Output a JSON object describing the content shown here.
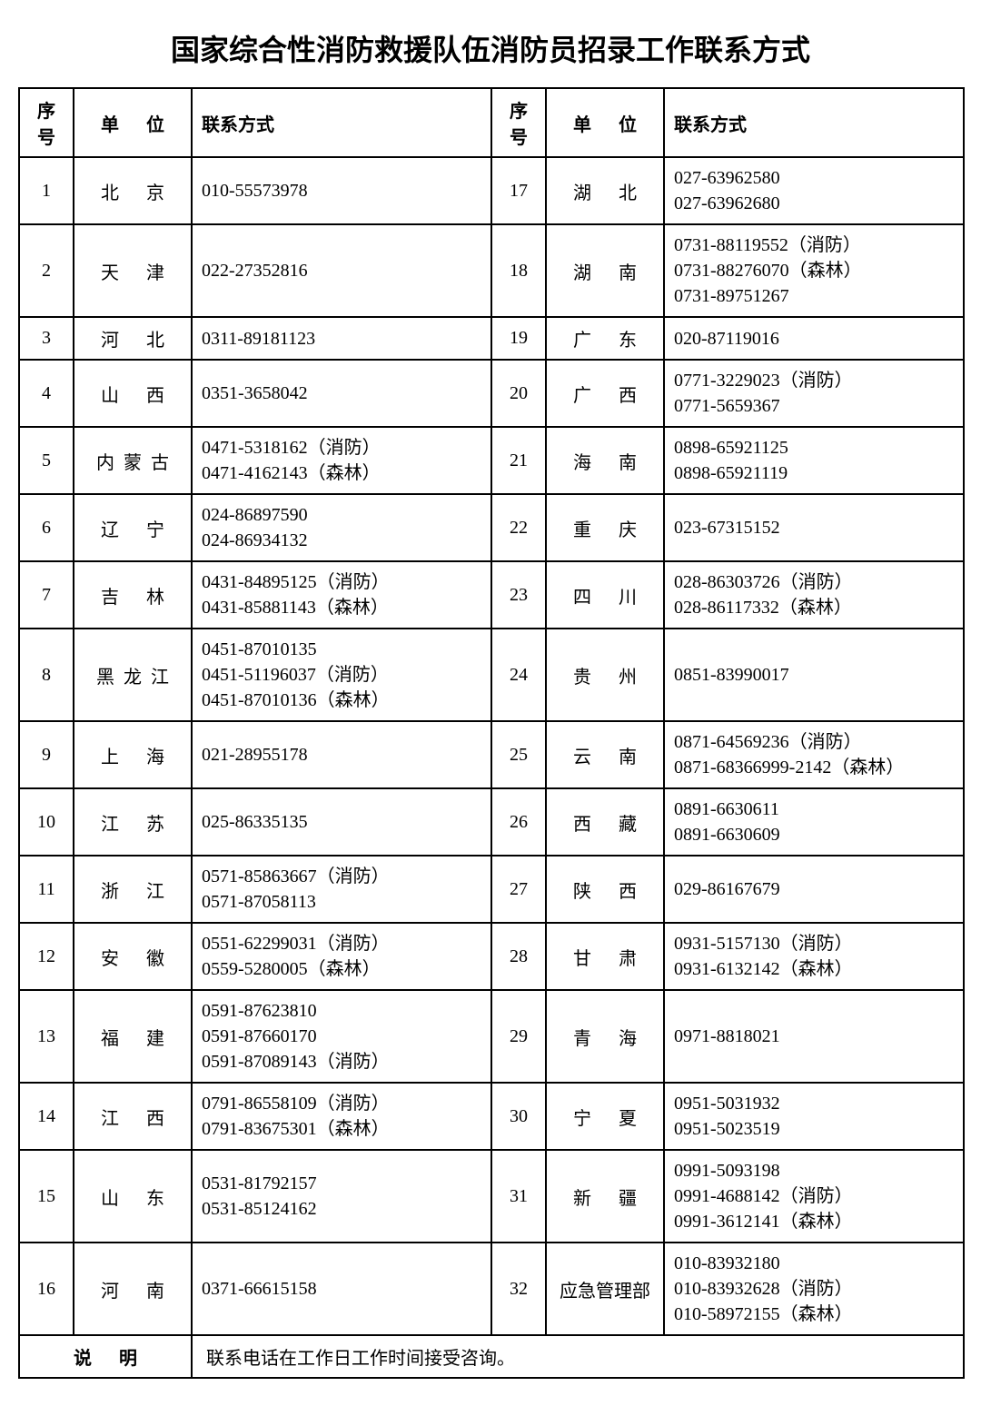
{
  "title": "国家综合性消防救援队伍消防员招录工作联系方式",
  "headers": {
    "num": "序号",
    "unit": "单位",
    "contact": "联系方式"
  },
  "footer": {
    "label": "说明",
    "text": "联系电话在工作日工作时间接受咨询。"
  },
  "rows": [
    {
      "n1": "1",
      "u1": "北京",
      "u1len": 2,
      "c1": "010-55573978",
      "n2": "17",
      "u2": "湖北",
      "u2len": 2,
      "c2": "027-63962580\n027-63962680"
    },
    {
      "n1": "2",
      "u1": "天津",
      "u1len": 2,
      "c1": "022-27352816",
      "n2": "18",
      "u2": "湖南",
      "u2len": 2,
      "c2": "0731-88119552（消防）\n0731-88276070（森林）\n0731-89751267"
    },
    {
      "n1": "3",
      "u1": "河北",
      "u1len": 2,
      "c1": "0311-89181123",
      "n2": "19",
      "u2": "广东",
      "u2len": 2,
      "c2": "020-87119016"
    },
    {
      "n1": "4",
      "u1": "山西",
      "u1len": 2,
      "c1": "0351-3658042",
      "n2": "20",
      "u2": "广西",
      "u2len": 2,
      "c2": "0771-3229023（消防）\n0771-5659367"
    },
    {
      "n1": "5",
      "u1": "内蒙古",
      "u1len": 3,
      "c1": "0471-5318162（消防）\n0471-4162143（森林）",
      "n2": "21",
      "u2": "海南",
      "u2len": 2,
      "c2": "0898-65921125\n0898-65921119"
    },
    {
      "n1": "6",
      "u1": "辽宁",
      "u1len": 2,
      "c1": "024-86897590\n024-86934132",
      "n2": "22",
      "u2": "重庆",
      "u2len": 2,
      "c2": "023-67315152"
    },
    {
      "n1": "7",
      "u1": "吉林",
      "u1len": 2,
      "c1": "0431-84895125（消防）\n0431-85881143（森林）",
      "n2": "23",
      "u2": "四川",
      "u2len": 2,
      "c2": "028-86303726（消防）\n028-86117332（森林）"
    },
    {
      "n1": "8",
      "u1": "黑龙江",
      "u1len": 3,
      "c1": "0451-87010135\n0451-51196037（消防）\n0451-87010136（森林）",
      "n2": "24",
      "u2": "贵州",
      "u2len": 2,
      "c2": "0851-83990017"
    },
    {
      "n1": "9",
      "u1": "上海",
      "u1len": 2,
      "c1": "021-28955178",
      "n2": "25",
      "u2": "云南",
      "u2len": 2,
      "c2": "0871-64569236（消防）\n0871-68366999-2142（森林）"
    },
    {
      "n1": "10",
      "u1": "江苏",
      "u1len": 2,
      "c1": "025-86335135",
      "n2": "26",
      "u2": "西藏",
      "u2len": 2,
      "c2": "0891-6630611\n0891-6630609"
    },
    {
      "n1": "11",
      "u1": "浙江",
      "u1len": 2,
      "c1": "0571-85863667（消防）\n0571-87058113",
      "n2": "27",
      "u2": "陕西",
      "u2len": 2,
      "c2": "029-86167679"
    },
    {
      "n1": "12",
      "u1": "安徽",
      "u1len": 2,
      "c1": "0551-62299031（消防）\n0559-5280005（森林）",
      "n2": "28",
      "u2": "甘肃",
      "u2len": 2,
      "c2": "0931-5157130（消防）\n0931-6132142（森林）"
    },
    {
      "n1": "13",
      "u1": "福建",
      "u1len": 2,
      "c1": "0591-87623810\n0591-87660170\n0591-87089143（消防）",
      "n2": "29",
      "u2": "青海",
      "u2len": 2,
      "c2": "0971-8818021"
    },
    {
      "n1": "14",
      "u1": "江西",
      "u1len": 2,
      "c1": "0791-86558109（消防）\n0791-83675301（森林）",
      "n2": "30",
      "u2": "宁夏",
      "u2len": 2,
      "c2": "0951-5031932\n0951-5023519"
    },
    {
      "n1": "15",
      "u1": "山东",
      "u1len": 2,
      "c1": "0531-81792157\n0531-85124162",
      "n2": "31",
      "u2": "新疆",
      "u2len": 2,
      "c2": "0991-5093198\n0991-4688142（消防）\n0991-3612141（森林）"
    },
    {
      "n1": "16",
      "u1": "河南",
      "u1len": 2,
      "c1": "0371-66615158",
      "n2": "32",
      "u2": "应急管理部",
      "u2len": 5,
      "c2": "010-83932180\n010-83932628（消防）\n010-58972155（森林）"
    }
  ]
}
